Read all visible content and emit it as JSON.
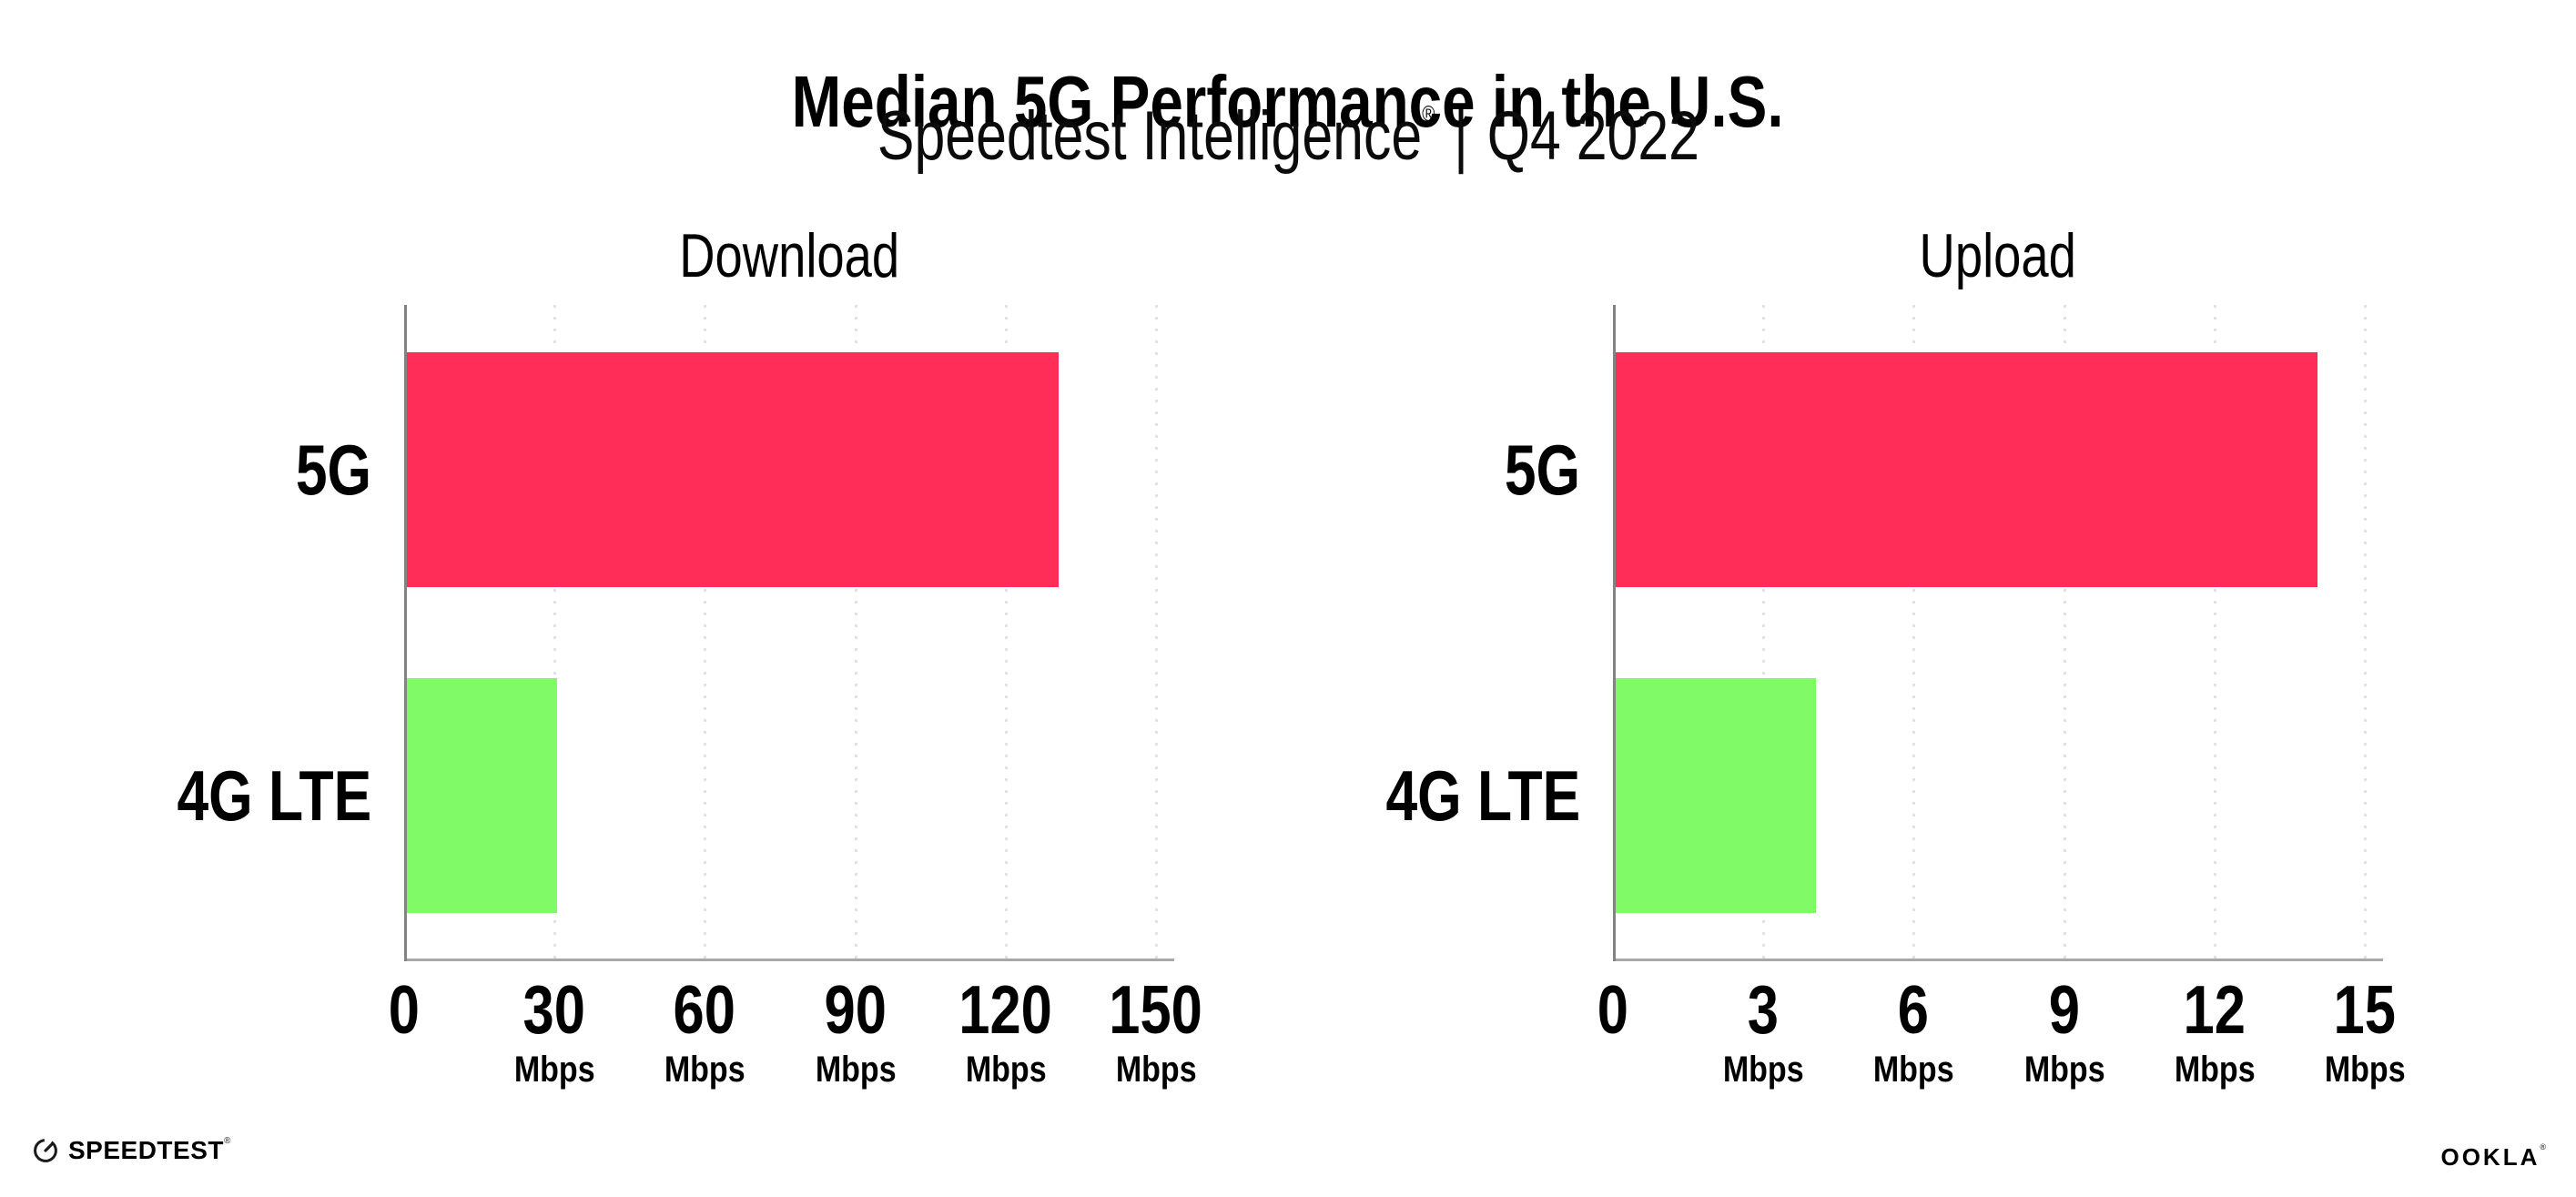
{
  "header": {
    "title": "Median 5G Performance in the U.S.",
    "subtitle_brand": "Speedtest Intelligence",
    "subtitle_reg": "®",
    "subtitle_separator": "|",
    "subtitle_period": "Q4 2022"
  },
  "chart_data": [
    {
      "type": "bar",
      "orientation": "horizontal",
      "title": "Download",
      "categories": [
        "5G",
        "4G LTE"
      ],
      "values": [
        130,
        30
      ],
      "unit": "Mbps",
      "xlim": [
        0,
        150
      ],
      "xticks": [
        0,
        30,
        60,
        90,
        120,
        150
      ],
      "bar_colors": [
        "#ff2d58",
        "#80fa66"
      ],
      "grid": "dotted-vertical",
      "legend": "none"
    },
    {
      "type": "bar",
      "orientation": "horizontal",
      "title": "Upload",
      "categories": [
        "5G",
        "4G LTE"
      ],
      "values": [
        14,
        4
      ],
      "unit": "Mbps",
      "xlim": [
        0,
        15
      ],
      "xticks": [
        0,
        3,
        6,
        9,
        12,
        15
      ],
      "bar_colors": [
        "#ff2d58",
        "#80fa66"
      ],
      "grid": "dotted-vertical",
      "legend": "none"
    }
  ],
  "footer": {
    "speedtest_logo_text": "SPEEDTEST",
    "speedtest_reg": "®",
    "ookla_logo_text": "OOKLA",
    "ookla_reg": "®"
  },
  "colors": {
    "bar_5g": "#ff2d58",
    "bar_4g_lte": "#80fa66",
    "y_axis": "#838383",
    "x_axis": "#a8a8a8",
    "grid_dot": "#e0e0e8",
    "text": "#000000"
  }
}
